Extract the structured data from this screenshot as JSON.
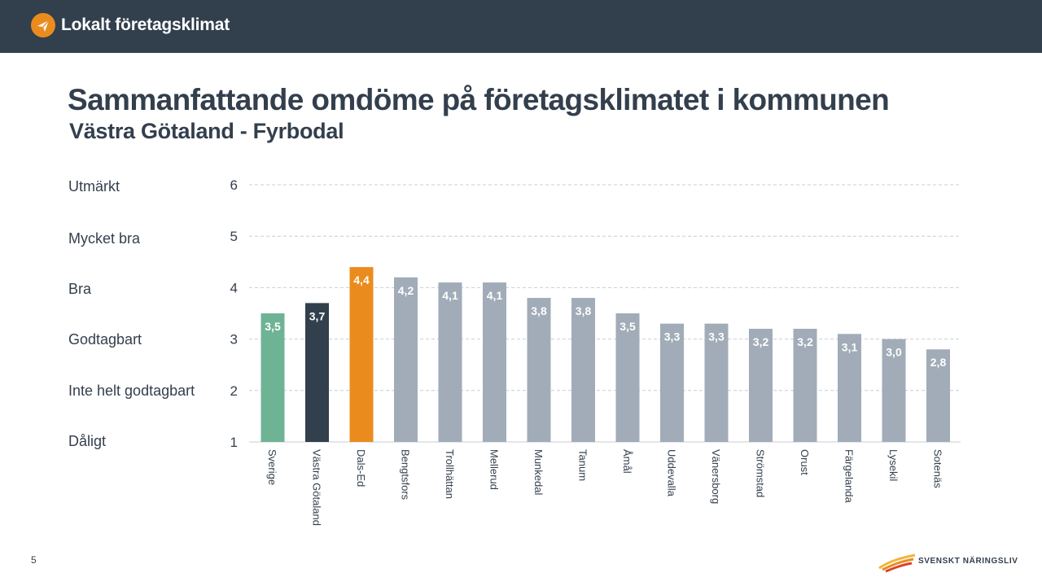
{
  "header": {
    "brand_name": "Lokalt företagsklimat",
    "brand_color": "#323f4d",
    "icon": "paper-plane-icon"
  },
  "slide": {
    "title": "Sammanfattande omdöme på företagsklimatet i kommunen",
    "subtitle": "Västra Götaland - Fyrbodal",
    "page_number": "5"
  },
  "rating_scale": [
    {
      "value": 6,
      "label": "Utmärkt"
    },
    {
      "value": 5,
      "label": "Mycket bra"
    },
    {
      "value": 4,
      "label": "Bra"
    },
    {
      "value": 3,
      "label": "Godtagbart"
    },
    {
      "value": 2,
      "label": "Inte helt godtagbart"
    },
    {
      "value": 1,
      "label": "Dåligt"
    }
  ],
  "footer": {
    "logo_text": "SVENSKT NÄRINGSLIV"
  },
  "chart_data": {
    "type": "bar",
    "title": "",
    "xlabel": "",
    "ylabel": "",
    "ylim": [
      1,
      6
    ],
    "yticks": [
      1,
      2,
      3,
      4,
      5,
      6
    ],
    "grid": true,
    "categories": [
      "Sverige",
      "Västra Götaland",
      "Dals-Ed",
      "Bengtsfors",
      "Trollhättan",
      "Mellerud",
      "Munkedal",
      "Tanum",
      "Åmål",
      "Uddevalla",
      "Vänersborg",
      "Strömstad",
      "Orust",
      "Färgelanda",
      "Lysekil",
      "Sotenäs"
    ],
    "values": [
      3.5,
      3.7,
      4.4,
      4.2,
      4.1,
      4.1,
      3.8,
      3.8,
      3.5,
      3.3,
      3.3,
      3.2,
      3.2,
      3.1,
      3.0,
      2.8
    ],
    "labels": [
      "3,5",
      "3,7",
      "4,4",
      "4,2",
      "4,1",
      "4,1",
      "3,8",
      "3,8",
      "3,5",
      "3,3",
      "3,3",
      "3,2",
      "3,2",
      "3,1",
      "3,0",
      "2,8"
    ],
    "colors": [
      "#6fb395",
      "#323f4d",
      "#ea8c1d",
      "#a1acb8",
      "#a1acb8",
      "#a1acb8",
      "#a1acb8",
      "#a1acb8",
      "#a1acb8",
      "#a1acb8",
      "#a1acb8",
      "#a1acb8",
      "#a1acb8",
      "#a1acb8",
      "#a1acb8",
      "#a1acb8"
    ]
  }
}
